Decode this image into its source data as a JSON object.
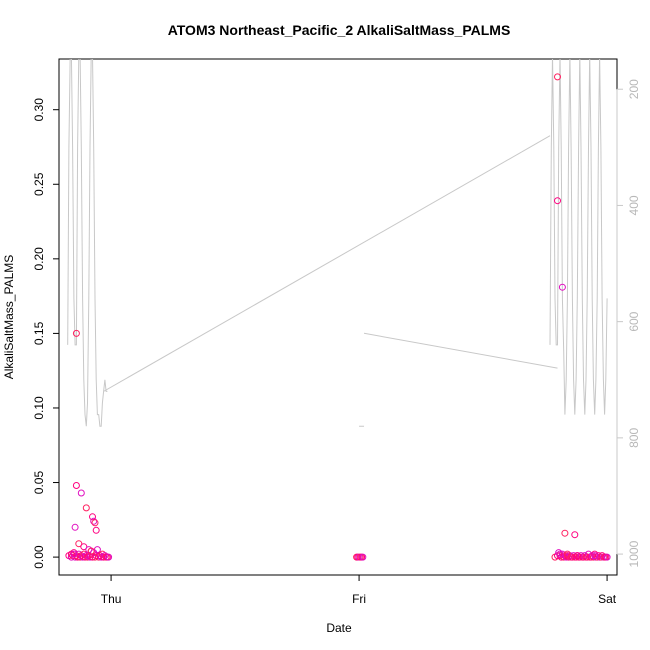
{
  "chart_data": {
    "type": "scatter",
    "title": "ATOM3 Northeast_Pacific_2 AlkaliSaltMass_PALMS",
    "xlabel": "Date",
    "ylabel": "AlkaliSaltMass_PALMS",
    "x_ticks": [
      "Thu",
      "Fri",
      "Sat"
    ],
    "x_tick_values": [
      0,
      1,
      2
    ],
    "xlim": [
      -0.21,
      2.04
    ],
    "ylim": [
      -0.012,
      0.334
    ],
    "y_ticks": [
      0.0,
      0.05,
      0.1,
      0.15,
      0.2,
      0.25,
      0.3
    ],
    "y_tick_labels": [
      "0.00",
      "0.05",
      "0.10",
      "0.15",
      "0.20",
      "0.25",
      "0.30"
    ],
    "right_axis": {
      "ylim": [
        1036,
        148
      ],
      "ticks": [
        200,
        400,
        600,
        800,
        1000
      ],
      "tick_labels": [
        "200",
        "400",
        "600",
        "800",
        "1000"
      ],
      "color": "#c8c8c8"
    },
    "marker_colors": [
      "#ff0080",
      "#e010c0",
      "#ff2060"
    ],
    "line_color": "#c8c8c8",
    "series": [
      {
        "kind": "points",
        "x": [
          -0.17,
          -0.16,
          -0.155,
          -0.15,
          -0.145,
          -0.14,
          -0.135,
          -0.13,
          -0.125,
          -0.12,
          -0.115,
          -0.11,
          -0.105,
          -0.1,
          -0.095,
          -0.09,
          -0.085,
          -0.08,
          -0.075,
          -0.07,
          -0.065,
          -0.06,
          -0.055,
          -0.05,
          -0.045,
          -0.04,
          -0.035,
          -0.03,
          -0.025,
          -0.02,
          -0.015,
          -0.01,
          -0.14,
          -0.14,
          -0.12,
          -0.1,
          -0.075,
          -0.07,
          -0.065,
          -0.06,
          -0.145,
          -0.13,
          -0.11,
          -0.09,
          -0.08,
          -0.16,
          -0.15
        ],
        "y": [
          0.001,
          0,
          0.001,
          0.003,
          0,
          0.001,
          0,
          0.002,
          0,
          0.001,
          0,
          0.002,
          0,
          0.001,
          0,
          0.001,
          0,
          0.004,
          0,
          0.003,
          0,
          0.001,
          0.005,
          0,
          0.001,
          0,
          0.002,
          0,
          0.001,
          0,
          0,
          0,
          0.15,
          0.048,
          0.043,
          0.033,
          0.027,
          0.024,
          0.023,
          0.018,
          0.02,
          0.009,
          0.007,
          0.005,
          0.004,
          0.002,
          0.002
        ]
      },
      {
        "kind": "points",
        "x": [
          0.99,
          0.995,
          1.0,
          1.005,
          1.01,
          1.015
        ],
        "y": [
          0,
          0,
          0,
          0,
          0,
          0
        ]
      },
      {
        "kind": "points",
        "x": [
          1.79,
          1.8,
          1.805,
          1.81,
          1.815,
          1.82,
          1.825,
          1.83,
          1.835,
          1.84,
          1.845,
          1.85,
          1.855,
          1.86,
          1.865,
          1.87,
          1.875,
          1.88,
          1.885,
          1.89,
          1.895,
          1.9,
          1.905,
          1.91,
          1.915,
          1.92,
          1.925,
          1.93,
          1.935,
          1.94,
          1.945,
          1.95,
          1.955,
          1.96,
          1.965,
          1.97,
          1.975,
          1.98,
          1.985,
          1.99,
          1.995,
          2.0,
          1.8,
          1.8,
          1.82,
          1.83,
          1.87,
          1.81,
          1.84,
          1.88,
          1.95
        ],
        "y": [
          0,
          0.001,
          0.003,
          0.001,
          0,
          0.002,
          0,
          0.001,
          0,
          0.001,
          0,
          0.001,
          0,
          0,
          0.001,
          0,
          0,
          0.001,
          0,
          0,
          0.001,
          0,
          0,
          0.001,
          0,
          0,
          0.002,
          0,
          0,
          0.001,
          0,
          0.002,
          0,
          0,
          0.001,
          0,
          0,
          0.001,
          0,
          0,
          0,
          0,
          0.322,
          0.239,
          0.181,
          0.016,
          0.015,
          0.002,
          0.002,
          0.001,
          0.001
        ]
      },
      {
        "kind": "line",
        "desc": "altitude trace on right axis (units of right axis)",
        "x": [
          -0.175,
          -0.17,
          -0.165,
          -0.16,
          -0.155,
          -0.15,
          -0.145,
          -0.14,
          -0.135,
          -0.13,
          -0.125,
          -0.12,
          -0.115,
          -0.11,
          -0.105,
          -0.1,
          -0.095,
          -0.09,
          -0.085,
          -0.08,
          -0.075,
          -0.07,
          -0.065,
          -0.06,
          -0.055,
          -0.05,
          -0.045,
          -0.04,
          -0.035,
          -0.03,
          -0.025,
          -0.02,
          -0.015,
          1.77,
          1.775,
          1.78,
          1.785,
          1.79,
          1.795,
          1.8,
          1.805,
          1.81,
          1.815,
          1.82,
          1.825,
          1.83,
          1.835,
          1.84,
          1.845,
          1.85,
          1.855,
          1.86,
          1.865,
          1.87,
          1.875,
          1.88,
          1.885,
          1.89,
          1.895,
          1.9,
          1.905,
          1.91,
          1.915,
          1.92,
          1.925,
          1.93,
          1.935,
          1.94,
          1.945,
          1.95,
          1.955,
          1.96,
          1.965,
          1.97,
          1.975,
          1.98,
          1.985,
          1.99,
          1.995,
          2.0
        ],
        "y": [
          640,
          300,
          140,
          140,
          300,
          560,
          640,
          640,
          300,
          140,
          140,
          300,
          560,
          700,
          760,
          780,
          740,
          560,
          300,
          140,
          140,
          300,
          560,
          700,
          760,
          760,
          780,
          780,
          740,
          720,
          700,
          720,
          720,
          640,
          300,
          140,
          300,
          560,
          640,
          640,
          300,
          140,
          300,
          560,
          650,
          760,
          700,
          560,
          300,
          140,
          300,
          560,
          700,
          760,
          700,
          560,
          300,
          140,
          300,
          560,
          700,
          760,
          700,
          560,
          300,
          140,
          300,
          560,
          700,
          760,
          700,
          560,
          300,
          140,
          300,
          560,
          700,
          760,
          700,
          560
        ]
      },
      {
        "kind": "line",
        "desc": "transit segments on right axis",
        "x": [
          -0.03,
          1.77,
          1.0,
          1.0,
          1.0,
          1.02,
          1.02,
          1.8,
          2.0
        ],
        "y": [
          720,
          280,
          680,
          680,
          780,
          780,
          620,
          680,
          620
        ]
      }
    ]
  }
}
